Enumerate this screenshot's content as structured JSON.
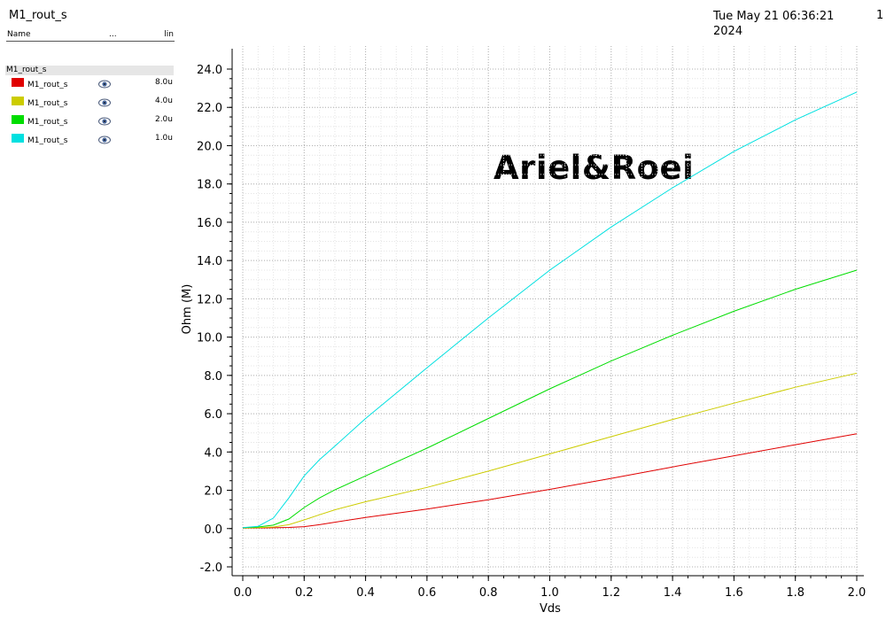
{
  "header": {
    "title": "M1_rout_s",
    "date_line1": "Tue May 21 06:36:21",
    "date_line2": "2024",
    "page": "1"
  },
  "legend": {
    "col_name": "Name",
    "col_dots": "...",
    "col_scale": "lin",
    "group_label": "M1_rout_s",
    "items": [
      {
        "name": "M1_rout_s",
        "value": "8.0u",
        "color": "#e00000",
        "icon": "eye-icon"
      },
      {
        "name": "M1_rout_s",
        "value": "4.0u",
        "color": "#cccc00",
        "icon": "eye-icon"
      },
      {
        "name": "M1_rout_s",
        "value": "2.0u",
        "color": "#00dd00",
        "icon": "eye-icon"
      },
      {
        "name": "M1_rout_s",
        "value": "1.0u",
        "color": "#00e0e0",
        "icon": "eye-icon"
      }
    ]
  },
  "watermark": "Ariel&Roei",
  "chart_data": {
    "type": "line",
    "xlabel": "Vds",
    "ylabel": "Ohm (M)",
    "xlim": [
      0.0,
      2.0
    ],
    "ylim": [
      -2.0,
      24.0
    ],
    "x_ticks": [
      "0.0",
      "0.2",
      "0.4",
      "0.6",
      "0.8",
      "1.0",
      "1.2",
      "1.4",
      "1.6",
      "1.8",
      "2.0"
    ],
    "y_ticks": [
      "-2.0",
      "0.0",
      "2.0",
      "4.0",
      "6.0",
      "8.0",
      "10.0",
      "12.0",
      "14.0",
      "16.0",
      "18.0",
      "20.0",
      "22.0",
      "24.0"
    ],
    "grid": true,
    "x": [
      0.0,
      0.05,
      0.1,
      0.15,
      0.2,
      0.25,
      0.3,
      0.4,
      0.6,
      0.8,
      1.0,
      1.2,
      1.4,
      1.6,
      1.8,
      2.0
    ],
    "series": [
      {
        "name": "M1_rout_s 8.0u",
        "color": "#e00000",
        "values": [
          0.02,
          0.03,
          0.04,
          0.06,
          0.1,
          0.2,
          0.33,
          0.58,
          1.02,
          1.5,
          2.05,
          2.62,
          3.22,
          3.8,
          4.38,
          4.95
        ]
      },
      {
        "name": "M1_rout_s 4.0u",
        "color": "#cccc00",
        "values": [
          0.03,
          0.05,
          0.08,
          0.2,
          0.45,
          0.72,
          0.98,
          1.4,
          2.15,
          3.0,
          3.9,
          4.8,
          5.7,
          6.55,
          7.38,
          8.12
        ]
      },
      {
        "name": "M1_rout_s 2.0u",
        "color": "#00dd00",
        "values": [
          0.05,
          0.08,
          0.18,
          0.5,
          1.1,
          1.6,
          2.02,
          2.75,
          4.2,
          5.75,
          7.3,
          8.75,
          10.1,
          11.35,
          12.5,
          13.5
        ]
      },
      {
        "name": "M1_rout_s 1.0u",
        "color": "#00e0e0",
        "values": [
          0.05,
          0.12,
          0.55,
          1.6,
          2.75,
          3.6,
          4.3,
          5.75,
          8.4,
          11.0,
          13.5,
          15.75,
          17.8,
          19.7,
          21.35,
          22.8
        ]
      }
    ]
  }
}
